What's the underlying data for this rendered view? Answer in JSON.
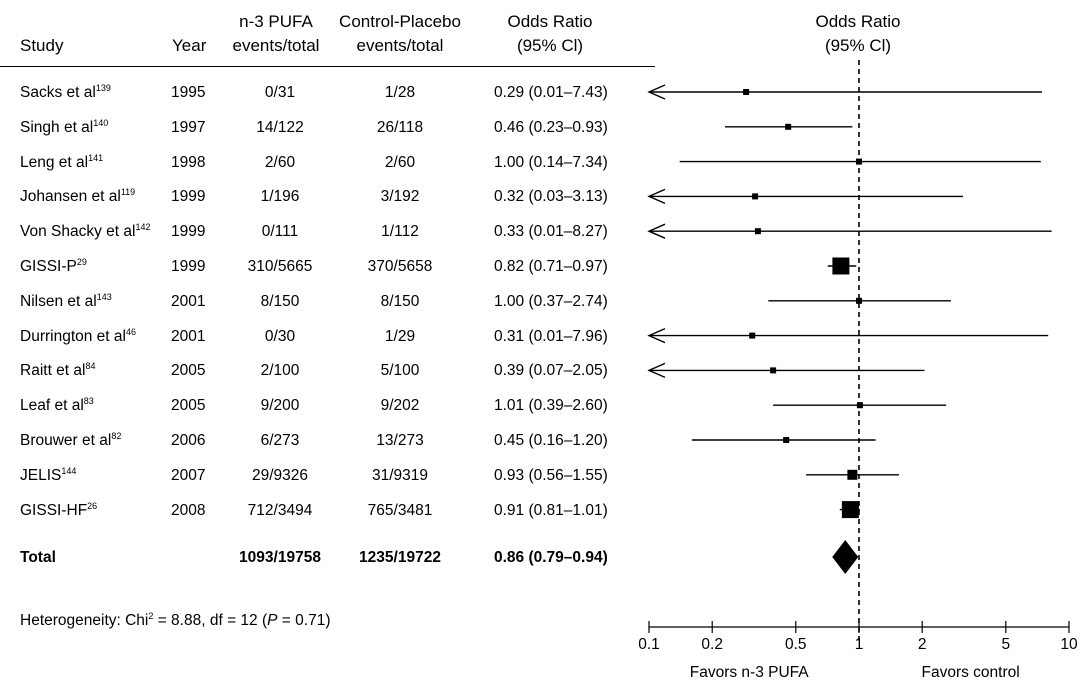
{
  "headers": {
    "study": "Study",
    "year": "Year",
    "pufa_l1": "n-3 PUFA",
    "pufa_l2": "events/total",
    "ctrl_l1": "Control-Placebo",
    "ctrl_l2": "events/total",
    "or_l1": "Odds Ratio",
    "or_l2": "(95% Cl)",
    "plot_l1": "Odds Ratio",
    "plot_l2": "(95% Cl)"
  },
  "studies": [
    {
      "name": "Sacks et al",
      "ref": "139",
      "year": "1995",
      "pufa": "0/31",
      "ctrl": "1/28",
      "or_text": "0.29 (0.01–7.43)"
    },
    {
      "name": "Singh et al",
      "ref": "140",
      "year": "1997",
      "pufa": "14/122",
      "ctrl": "26/118",
      "or_text": "0.46 (0.23–0.93)"
    },
    {
      "name": "Leng et al",
      "ref": "141",
      "year": "1998",
      "pufa": "2/60",
      "ctrl": "2/60",
      "or_text": "1.00 (0.14–7.34)"
    },
    {
      "name": "Johansen et al",
      "ref": "119",
      "year": "1999",
      "pufa": "1/196",
      "ctrl": "3/192",
      "or_text": "0.32 (0.03–3.13)"
    },
    {
      "name": "Von Shacky et al",
      "ref": "142",
      "year": "1999",
      "pufa": "0/111",
      "ctrl": "1/112",
      "or_text": "0.33 (0.01–8.27)"
    },
    {
      "name": "GISSI-P",
      "ref": "29",
      "year": "1999",
      "pufa": "310/5665",
      "ctrl": "370/5658",
      "or_text": "0.82 (0.71–0.97)"
    },
    {
      "name": "Nilsen et al",
      "ref": "143",
      "year": "2001",
      "pufa": "8/150",
      "ctrl": "8/150",
      "or_text": "1.00 (0.37–2.74)"
    },
    {
      "name": "Durrington et al",
      "ref": "46",
      "year": "2001",
      "pufa": "0/30",
      "ctrl": "1/29",
      "or_text": "0.31 (0.01–7.96)"
    },
    {
      "name": "Raitt et al",
      "ref": "84",
      "year": "2005",
      "pufa": "2/100",
      "ctrl": "5/100",
      "or_text": "0.39 (0.07–2.05)"
    },
    {
      "name": "Leaf et al",
      "ref": "83",
      "year": "2005",
      "pufa": "9/200",
      "ctrl": "9/202",
      "or_text": "1.01 (0.39–2.60)"
    },
    {
      "name": "Brouwer et al",
      "ref": "82",
      "year": "2006",
      "pufa": "6/273",
      "ctrl": "13/273",
      "or_text": "0.45 (0.16–1.20)"
    },
    {
      "name": "JELIS",
      "ref": "144",
      "year": "2007",
      "pufa": "29/9326",
      "ctrl": "31/9319",
      "or_text": "0.93 (0.56–1.55)"
    },
    {
      "name": "GISSI-HF",
      "ref": "26",
      "year": "2008",
      "pufa": "712/3494",
      "ctrl": "765/3481",
      "or_text": "0.91 (0.81–1.01)"
    }
  ],
  "total": {
    "label": "Total",
    "pufa": "1093/19758",
    "ctrl": "1235/19722",
    "or_text": "0.86 (0.79–0.94)"
  },
  "heterogeneity": {
    "prefix": "Heterogeneity: Chi",
    "sup": "2",
    "middle": " = 8.88, df = 12 (",
    "p": "P",
    "suffix": " = 0.71)"
  },
  "chart_data": {
    "type": "forest",
    "scale": "log",
    "xlim": [
      0.1,
      10
    ],
    "null_line": 1,
    "ticks": [
      0.1,
      0.2,
      0.5,
      1,
      2,
      5,
      10
    ],
    "tick_labels": [
      "0.1",
      "0.2",
      "0.5",
      "1",
      "2",
      "5",
      "10"
    ],
    "left_label": "Favors n-3 PUFA",
    "right_label": "Favors control",
    "series": [
      {
        "or": 0.29,
        "lo": 0.01,
        "hi": 7.43,
        "weight": "small"
      },
      {
        "or": 0.46,
        "lo": 0.23,
        "hi": 0.93,
        "weight": "small"
      },
      {
        "or": 1.0,
        "lo": 0.14,
        "hi": 7.34,
        "weight": "small"
      },
      {
        "or": 0.32,
        "lo": 0.03,
        "hi": 3.13,
        "weight": "small"
      },
      {
        "or": 0.33,
        "lo": 0.01,
        "hi": 8.27,
        "weight": "small"
      },
      {
        "or": 0.82,
        "lo": 0.71,
        "hi": 0.97,
        "weight": "large"
      },
      {
        "or": 1.0,
        "lo": 0.37,
        "hi": 2.74,
        "weight": "small"
      },
      {
        "or": 0.31,
        "lo": 0.01,
        "hi": 7.96,
        "weight": "small"
      },
      {
        "or": 0.39,
        "lo": 0.07,
        "hi": 2.05,
        "weight": "small"
      },
      {
        "or": 1.01,
        "lo": 0.39,
        "hi": 2.6,
        "weight": "small"
      },
      {
        "or": 0.45,
        "lo": 0.16,
        "hi": 1.2,
        "weight": "small"
      },
      {
        "or": 0.93,
        "lo": 0.56,
        "hi": 1.55,
        "weight": "medium"
      },
      {
        "or": 0.91,
        "lo": 0.81,
        "hi": 1.01,
        "weight": "large"
      }
    ],
    "total": {
      "or": 0.86,
      "lo": 0.79,
      "hi": 0.94
    }
  }
}
